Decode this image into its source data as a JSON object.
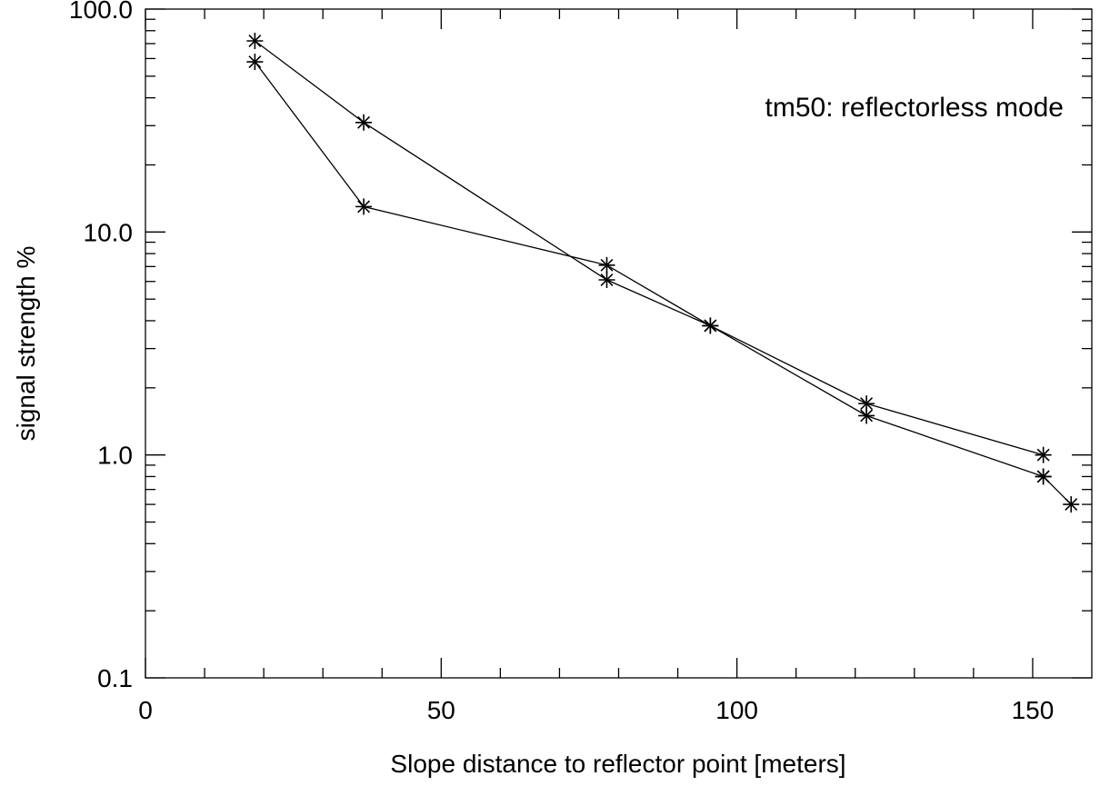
{
  "chart_data": {
    "type": "line",
    "title": "",
    "annotation": "tm50: reflectorless mode",
    "legend": "top-right",
    "xlabel": "Slope distance to reflector point [meters]",
    "ylabel": "signal strength %",
    "xlim": [
      0,
      160
    ],
    "ylim": [
      0.1,
      100
    ],
    "yscale": "log",
    "grid": false,
    "marker": "asterisk",
    "color": "#000000",
    "x_ticks": [
      0,
      50,
      100,
      150
    ],
    "x_tick_labels": [
      "0",
      "50",
      "100",
      "150"
    ],
    "x_minor_step": 10,
    "y_ticks": [
      0.1,
      1,
      10,
      100
    ],
    "y_tick_labels": [
      "0.1",
      "1.0",
      "10.0",
      "100.0"
    ],
    "series": [
      {
        "x": [
          18.5,
          36.9,
          78.0,
          95.5,
          121.9,
          151.8
        ],
        "y": [
          72,
          31,
          6.1,
          3.8,
          1.5,
          0.8
        ]
      },
      {
        "x": [
          18.5,
          36.9,
          78.0,
          95.5,
          121.9,
          151.8
        ],
        "y": [
          58,
          13,
          7.1,
          3.8,
          1.7,
          1.0
        ]
      },
      {
        "x": [
          151.8,
          156.5
        ],
        "y": [
          0.8,
          0.6
        ]
      }
    ]
  }
}
